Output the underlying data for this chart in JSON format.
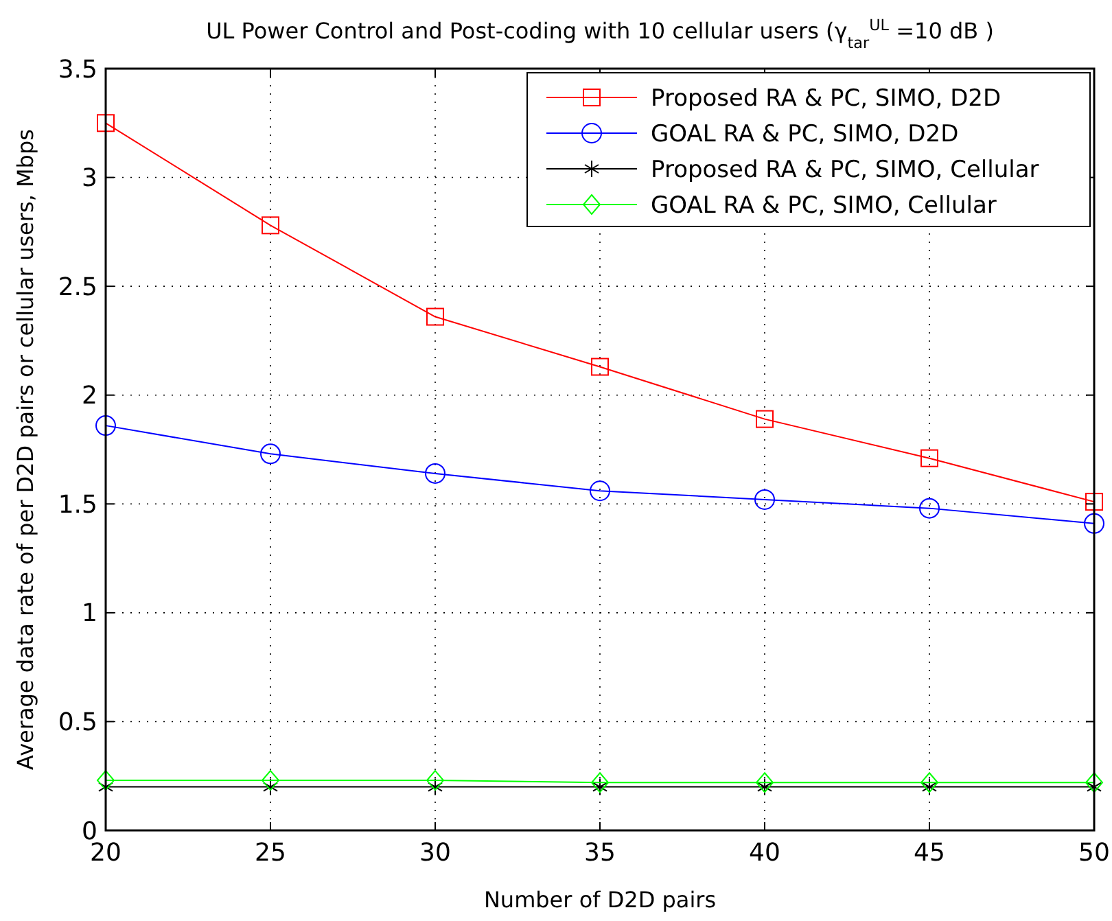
{
  "chart_data": {
    "type": "line",
    "title": "UL Power Control and Post-coding with 10 cellular users (γ$_{tar}$$^{UL}$ =10 dB )",
    "xlabel": "Number of D2D pairs",
    "ylabel": "Average data rate of per D2D pairs or cellular users, Mbps",
    "x": [
      20,
      25,
      30,
      35,
      40,
      45,
      50
    ],
    "series": [
      {
        "name": "Proposed RA & PC, SIMO, D2D",
        "color": "#ff0000",
        "marker": "square",
        "values": [
          3.25,
          2.78,
          2.36,
          2.13,
          1.89,
          1.71,
          1.51
        ]
      },
      {
        "name": "GOAL RA & PC, SIMO, D2D",
        "color": "#0000ff",
        "marker": "circle",
        "values": [
          1.86,
          1.73,
          1.64,
          1.56,
          1.52,
          1.48,
          1.41
        ]
      },
      {
        "name": "Proposed RA & PC, SIMO, Cellular",
        "color": "#000000",
        "marker": "cross",
        "values": [
          0.2,
          0.2,
          0.2,
          0.2,
          0.2,
          0.2,
          0.2
        ]
      },
      {
        "name": "GOAL RA & PC, SIMO, Cellular",
        "color": "#00ff00",
        "marker": "diamond",
        "values": [
          0.23,
          0.23,
          0.23,
          0.22,
          0.22,
          0.22,
          0.22
        ]
      }
    ],
    "xlim": [
      20,
      50
    ],
    "xticks": [
      20,
      25,
      30,
      35,
      40,
      45,
      50
    ],
    "ylim": [
      0,
      3.5
    ],
    "yticks": [
      0,
      0.5,
      1,
      1.5,
      2,
      2.5,
      3,
      3.5
    ],
    "grid": true,
    "legend": "top right",
    "line_style": "solid"
  }
}
